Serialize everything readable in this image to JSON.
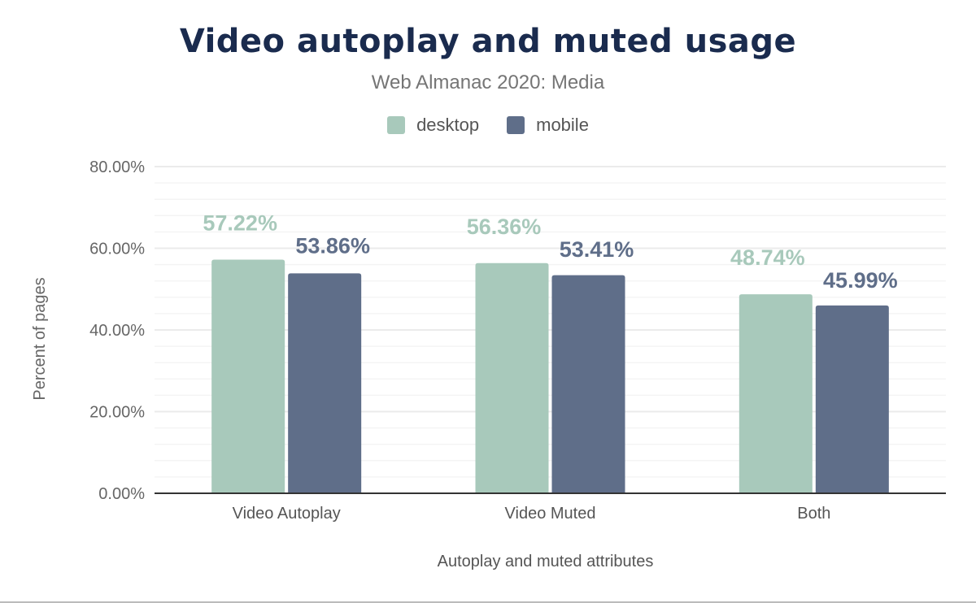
{
  "chart_data": {
    "type": "bar",
    "title": "Video autoplay and muted usage",
    "subtitle": "Web Almanac 2020: Media",
    "xlabel": "Autoplay and muted attributes",
    "ylabel": "Percent of pages",
    "categories": [
      "Video Autoplay",
      "Video Muted",
      "Both"
    ],
    "series": [
      {
        "name": "desktop",
        "color": "#a8c9bb",
        "values": [
          57.22,
          56.36,
          48.74
        ],
        "labels": [
          "57.22%",
          "56.36%",
          "48.74%"
        ]
      },
      {
        "name": "mobile",
        "color": "#5f6e89",
        "values": [
          53.86,
          53.41,
          45.99
        ],
        "labels": [
          "53.86%",
          "53.41%",
          "45.99%"
        ]
      }
    ],
    "ylim": [
      0,
      80
    ],
    "yticks": [
      0,
      20,
      40,
      60,
      80
    ],
    "ytick_labels": [
      "0.00%",
      "20.00%",
      "40.00%",
      "60.00%",
      "80.00%"
    ],
    "grid": true,
    "legend": "top-center"
  }
}
